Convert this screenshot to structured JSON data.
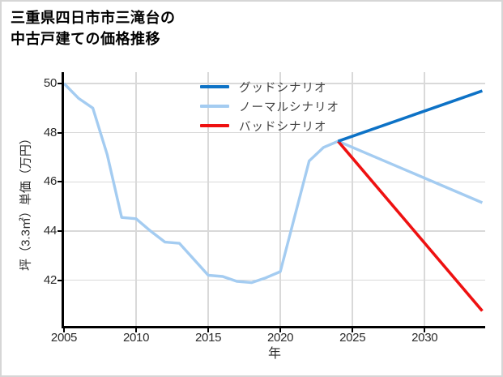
{
  "frame": {
    "background": "#ffffff",
    "border_color": "#d6d6d6"
  },
  "title": {
    "line1": "三重県四日市市三滝台の",
    "line2": "中古戸建ての価格推移"
  },
  "axes": {
    "x_label": "年",
    "y_label": "坪（3.3㎡）単価（万円）",
    "x_tick_labels": [
      "2005",
      "2010",
      "2015",
      "2020",
      "2025",
      "2030"
    ],
    "x_tick_values": [
      2005,
      2010,
      2015,
      2020,
      2025,
      2030
    ],
    "y_tick_labels": [
      "42",
      "44",
      "46",
      "48",
      "50"
    ],
    "y_tick_values": [
      42,
      44,
      46,
      48,
      50
    ],
    "grid_color": "#d9d9d9",
    "spine_color": "#000000"
  },
  "legend": {
    "items": [
      {
        "label": "グッドシナリオ",
        "color": "#0d72c6"
      },
      {
        "label": "ノーマルシナリオ",
        "color": "#a4ccf1"
      },
      {
        "label": "バッドシナリオ",
        "color": "#ee1111"
      }
    ]
  },
  "chart_data": {
    "type": "line",
    "title": "三重県四日市市三滝台の中古戸建ての価格推移",
    "xlabel": "年",
    "ylabel": "坪（3.3㎡）単価（万円）",
    "xlim": [
      2005,
      2034.2
    ],
    "ylim": [
      40.14,
      50.46
    ],
    "grid": true,
    "legend_position": "upper center",
    "series": [
      {
        "name": "ノーマルシナリオ",
        "color": "#a4ccf1",
        "width": 3.4,
        "x": [
          2005,
          2006,
          2007,
          2008,
          2009,
          2010,
          2011,
          2012,
          2013,
          2014,
          2015,
          2016,
          2017,
          2018,
          2019,
          2020,
          2021,
          2022,
          2023,
          2024,
          2034
        ],
        "values": [
          50.0,
          49.4,
          49.0,
          47.1,
          44.55,
          44.5,
          44.0,
          43.55,
          43.5,
          42.85,
          42.2,
          42.15,
          41.95,
          41.9,
          42.1,
          42.35,
          44.6,
          46.85,
          47.4,
          47.65,
          45.15
        ]
      },
      {
        "name": "バッドシナリオ",
        "color": "#ee1111",
        "width": 3.6,
        "x": [
          2024,
          2034
        ],
        "values": [
          47.65,
          40.75
        ]
      },
      {
        "name": "グッドシナリオ",
        "color": "#0d72c6",
        "width": 3.6,
        "x": [
          2024,
          2034
        ],
        "values": [
          47.65,
          49.7
        ]
      }
    ]
  }
}
